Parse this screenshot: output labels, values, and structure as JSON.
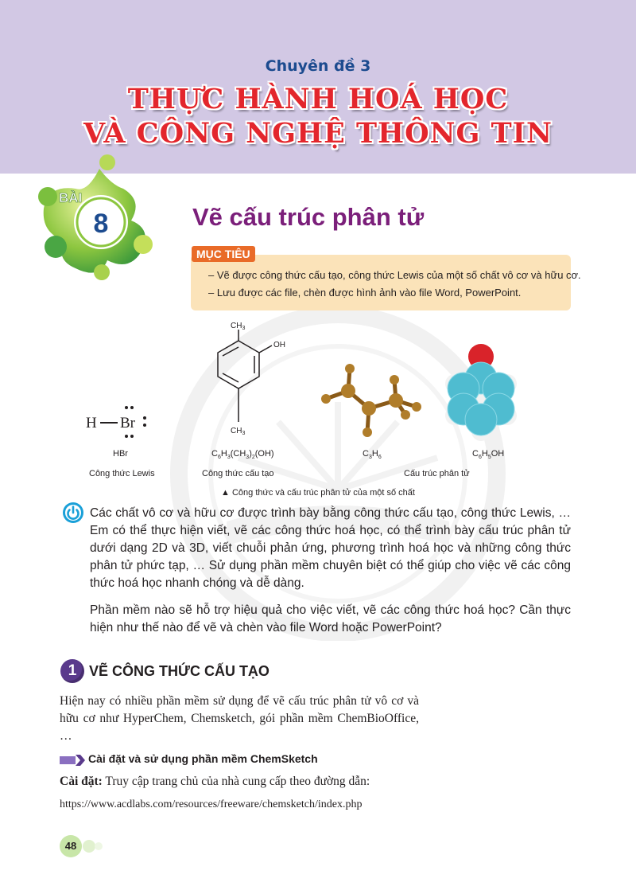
{
  "header": {
    "topic_label": "Chuyên đề 3",
    "title_line1": "THỰC HÀNH HOÁ HỌC",
    "title_line2": "VÀ CÔNG NGHỆ THÔNG TIN"
  },
  "lesson": {
    "badge_word": "BÀI",
    "badge_number": "8",
    "title": "Vẽ cấu trúc phân tử"
  },
  "objectives": {
    "tag": "MỤC TIÊU",
    "items": [
      "– Vẽ được công thức cấu tạo, công thức Lewis của một số chất vô cơ và hữu cơ.",
      "– Lưu được các file, chèn được hình ảnh vào file Word, PowerPoint."
    ]
  },
  "figure": {
    "lewis_atom_h": "H",
    "lewis_atom_br": "Br",
    "ch3_top": "CH",
    "ch3_top_sub": "3",
    "oh_group": "OH",
    "ch3_bottom": "CH",
    "ch3_bottom_sub": "3",
    "labels": {
      "hbr": "HBr",
      "xylenol_1": "C",
      "xylenol_2": "6",
      "xylenol_3": "H",
      "xylenol_4": "3",
      "xylenol_5": "(CH",
      "xylenol_6": "3",
      "xylenol_7": ")",
      "xylenol_8": "2",
      "xylenol_9": "(OH)",
      "propene_1": "C",
      "propene_2": "3",
      "propene_3": "H",
      "propene_4": "6",
      "phenol_1": "C",
      "phenol_2": "6",
      "phenol_3": "H",
      "phenol_4": "5",
      "phenol_5": "OH",
      "lewis_type": "Công thức Lewis",
      "structural_type": "Công thức cấu tạo",
      "molecular_type": "Cấu trúc phân tử"
    },
    "caption": "▲ Công thức và cấu trúc phân tử của một số chất"
  },
  "intro": {
    "paragraph": "Các chất vô cơ và hữu cơ được trình bày bằng công thức cấu tạo, công thức Lewis, … Em có thể thực hiện viết, vẽ các công thức hoá học, có thể trình bày cấu trúc phân tử dưới dạng 2D và 3D, viết chuỗi phản ứng, phương trình hoá học và những công thức phân tử phức tạp, … Sử dụng phần mềm chuyên biệt có thể giúp cho việc vẽ các công thức hoá học nhanh chóng và dễ dàng.",
    "question": "Phần mềm nào sẽ hỗ trợ hiệu quả cho việc viết, vẽ các công thức hoá học? Cần thực hiện như thế nào để vẽ và chèn vào file Word hoặc PowerPoint?"
  },
  "section1": {
    "number": "1",
    "title": "VẼ CÔNG THỨC CẤU TẠO",
    "paragraph": "Hiện nay có nhiều phần mềm sử dụng để vẽ cấu trúc phân tử vô cơ và hữu cơ như HyperChem, Chemsketch, gói phần mềm ChemBioOffice, …",
    "subheading": "Cài đặt và sử dụng phần mềm ChemSketch",
    "setup_label": "Cài đặt:",
    "setup_text": " Truy cập trang chủ của nhà cung cấp theo đường dẫn:",
    "url": "https://www.acdlabs.com/resources/freeware/chemsketch/index.php"
  },
  "footer": {
    "page_number": "48"
  },
  "colors": {
    "header_band": "#d2c8e4",
    "title_red": "#e3262c",
    "topic_blue": "#1c4b8f",
    "lesson_purple": "#7b1f7a",
    "objective_bg": "#fbe3b9",
    "objective_tag": "#e96b28",
    "badge_green": "#8cc63f",
    "section_purple": "#5a3a8c"
  }
}
